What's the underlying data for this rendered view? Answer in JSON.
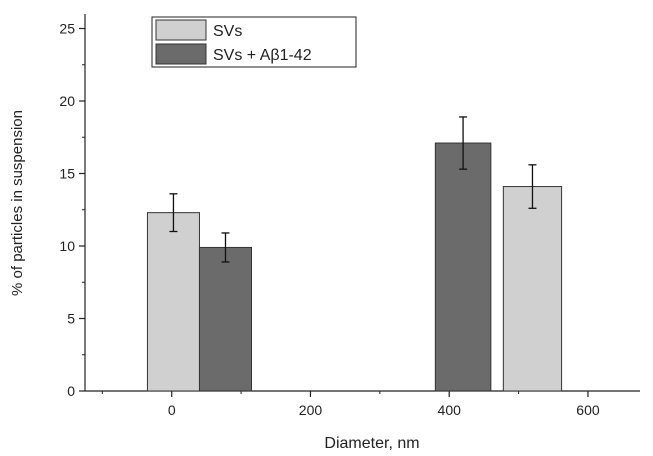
{
  "chart_data": {
    "type": "bar",
    "title": "",
    "xlabel": "Diameter, nm",
    "ylabel": "% of particles in suspension",
    "xlim": [
      -125,
      675
    ],
    "ylim": [
      0,
      26
    ],
    "x_ticks": [
      0,
      200,
      400,
      600
    ],
    "y_ticks": [
      0,
      5,
      10,
      15,
      20,
      25
    ],
    "grid": false,
    "legend_position": "top-left",
    "series": [
      {
        "name": "SVs",
        "color": "#d0d0d0",
        "points": [
          {
            "x": 0,
            "x_start": -35,
            "x_end": 40,
            "value": 12.3,
            "error": 1.3
          },
          {
            "x": 520,
            "x_start": 478,
            "x_end": 562,
            "value": 14.1,
            "error": 1.5
          }
        ]
      },
      {
        "name": "SVs + Aβ1-42",
        "color": "#6b6b6b",
        "points": [
          {
            "x": 75,
            "x_start": 40,
            "x_end": 115,
            "value": 9.9,
            "error": 1.0
          },
          {
            "x": 420,
            "x_start": 380,
            "x_end": 460,
            "value": 17.1,
            "error": 1.8
          }
        ]
      }
    ]
  }
}
